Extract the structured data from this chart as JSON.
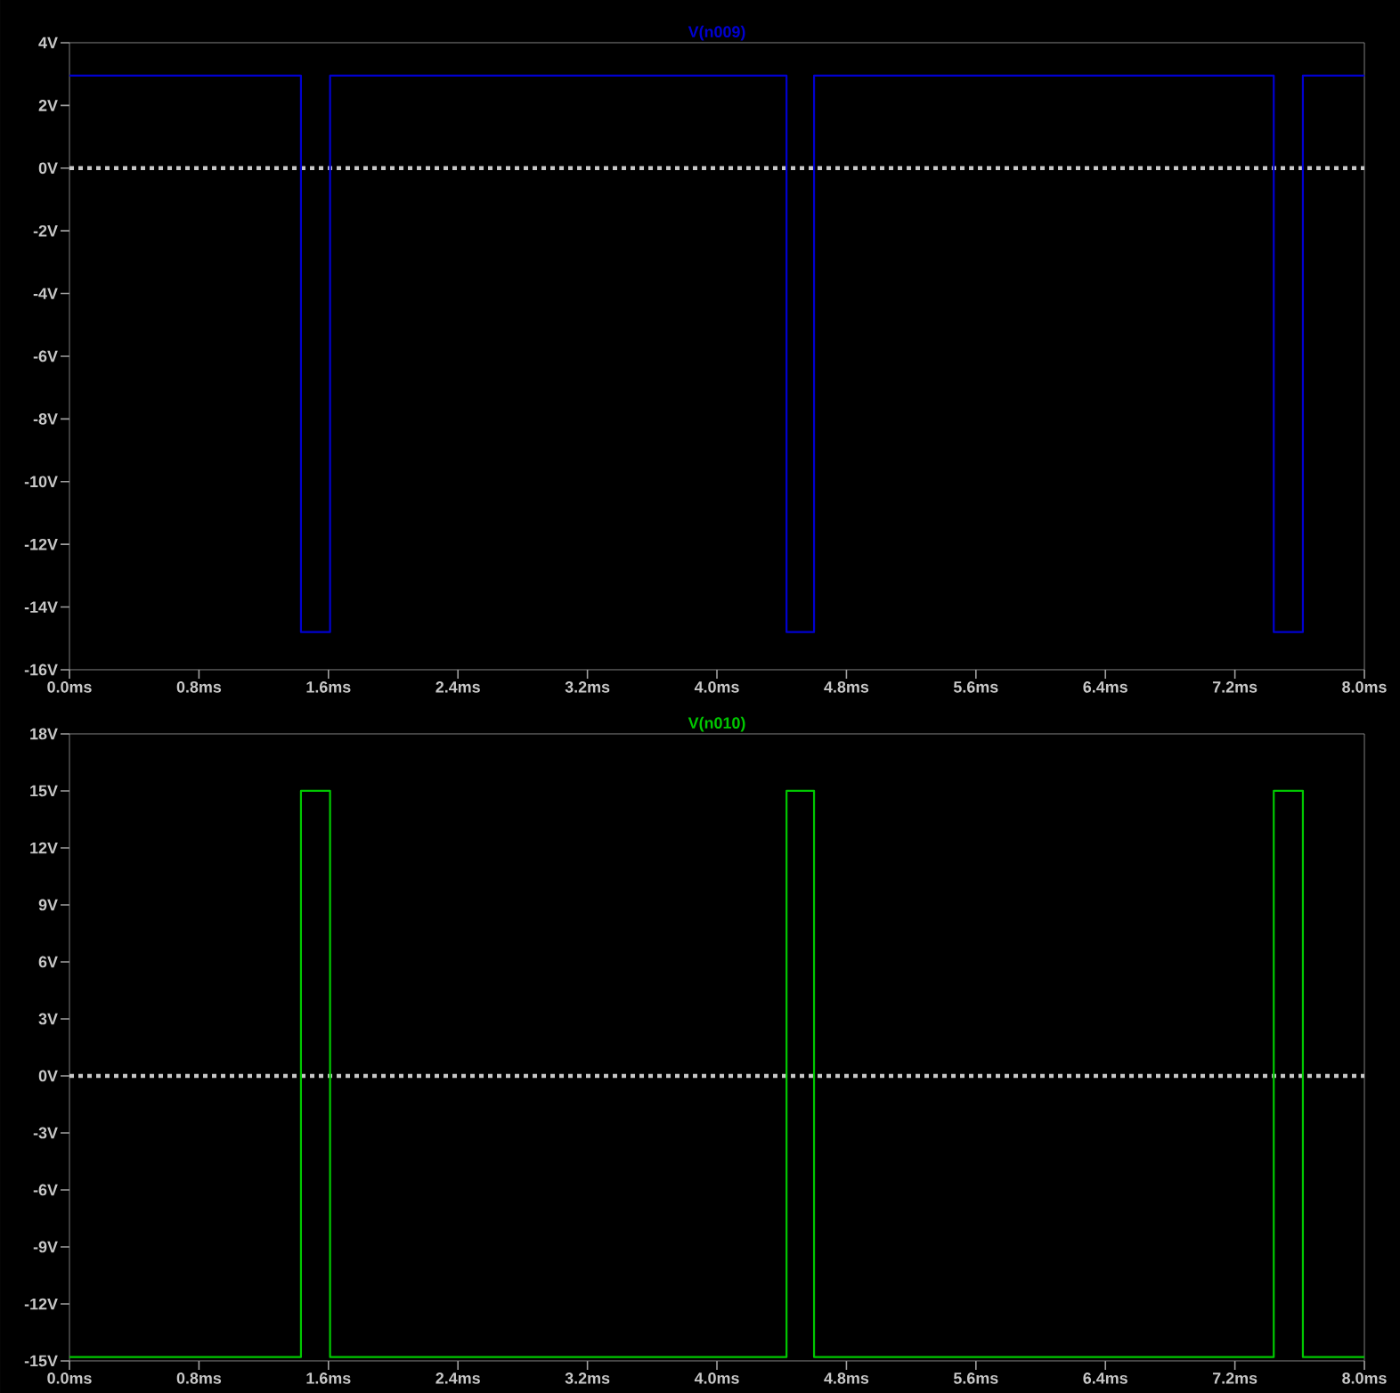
{
  "chart_data": [
    {
      "type": "line",
      "legend": "top",
      "series": [
        {
          "name": "V(n009)",
          "color": "#0000d0",
          "line_style": "solid",
          "x": [
            0,
            1.43,
            1.43,
            1.61,
            1.61,
            4.43,
            4.43,
            4.6,
            4.6,
            7.44,
            7.44,
            7.62,
            7.62,
            8
          ],
          "values": [
            2.95,
            2.95,
            -14.8,
            -14.8,
            2.95,
            2.95,
            -14.8,
            -14.8,
            2.95,
            2.95,
            -14.8,
            -14.8,
            2.95,
            2.95
          ]
        }
      ],
      "xlim": [
        0,
        8
      ],
      "ylim": [
        -16,
        4
      ],
      "xticks": [
        {
          "value": 0,
          "label": "0.0ms"
        },
        {
          "value": 0.8,
          "label": "0.8ms"
        },
        {
          "value": 1.6,
          "label": "1.6ms"
        },
        {
          "value": 2.4,
          "label": "2.4ms"
        },
        {
          "value": 3.2,
          "label": "3.2ms"
        },
        {
          "value": 4.0,
          "label": "4.0ms"
        },
        {
          "value": 4.8,
          "label": "4.8ms"
        },
        {
          "value": 5.6,
          "label": "5.6ms"
        },
        {
          "value": 6.4,
          "label": "6.4ms"
        },
        {
          "value": 7.2,
          "label": "7.2ms"
        },
        {
          "value": 8.0,
          "label": "8.0ms"
        }
      ],
      "yticks": [
        {
          "value": 4,
          "label": "4V"
        },
        {
          "value": 2,
          "label": "2V"
        },
        {
          "value": 0,
          "label": "0V"
        },
        {
          "value": -2,
          "label": "-2V"
        },
        {
          "value": -4,
          "label": "-4V"
        },
        {
          "value": -6,
          "label": "-6V"
        },
        {
          "value": -8,
          "label": "-8V"
        },
        {
          "value": -10,
          "label": "-10V"
        },
        {
          "value": -12,
          "label": "-12V"
        },
        {
          "value": -14,
          "label": "-14V"
        },
        {
          "value": -16,
          "label": "-16V"
        }
      ],
      "ref_lines": [
        {
          "axis": "y",
          "value": 0,
          "color": "#c8c8c8",
          "line_style": "dotted"
        }
      ]
    },
    {
      "type": "line",
      "legend": "top",
      "series": [
        {
          "name": "V(n010)",
          "color": "#00c800",
          "line_style": "solid",
          "x": [
            0,
            1.43,
            1.43,
            1.61,
            1.61,
            4.43,
            4.43,
            4.6,
            4.6,
            7.44,
            7.44,
            7.62,
            7.62,
            8
          ],
          "values": [
            -14.8,
            -14.8,
            15,
            15,
            -14.8,
            -14.8,
            15,
            15,
            -14.8,
            -14.8,
            15,
            15,
            -14.8,
            -14.8
          ]
        }
      ],
      "xlim": [
        0,
        8
      ],
      "ylim": [
        -15,
        18
      ],
      "xticks": [
        {
          "value": 0,
          "label": "0.0ms"
        },
        {
          "value": 0.8,
          "label": "0.8ms"
        },
        {
          "value": 1.6,
          "label": "1.6ms"
        },
        {
          "value": 2.4,
          "label": "2.4ms"
        },
        {
          "value": 3.2,
          "label": "3.2ms"
        },
        {
          "value": 4.0,
          "label": "4.0ms"
        },
        {
          "value": 4.8,
          "label": "4.8ms"
        },
        {
          "value": 5.6,
          "label": "5.6ms"
        },
        {
          "value": 6.4,
          "label": "6.4ms"
        },
        {
          "value": 7.2,
          "label": "7.2ms"
        },
        {
          "value": 8.0,
          "label": "8.0ms"
        }
      ],
      "yticks": [
        {
          "value": 18,
          "label": "18V"
        },
        {
          "value": 15,
          "label": "15V"
        },
        {
          "value": 12,
          "label": "12V"
        },
        {
          "value": 9,
          "label": "9V"
        },
        {
          "value": 6,
          "label": "6V"
        },
        {
          "value": 3,
          "label": "3V"
        },
        {
          "value": 0,
          "label": "0V"
        },
        {
          "value": -3,
          "label": "-3V"
        },
        {
          "value": -6,
          "label": "-6V"
        },
        {
          "value": -9,
          "label": "-9V"
        },
        {
          "value": -12,
          "label": "-12V"
        },
        {
          "value": -15,
          "label": "-15V"
        }
      ],
      "ref_lines": [
        {
          "axis": "y",
          "value": 0,
          "color": "#c8c8c8",
          "line_style": "dotted"
        }
      ]
    }
  ]
}
